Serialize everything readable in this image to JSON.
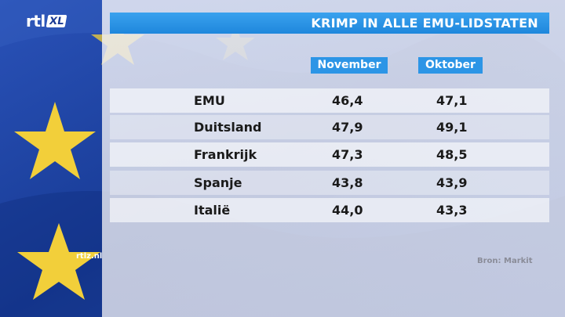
{
  "brand": {
    "logo_main": "rtl",
    "logo_sub": "XL"
  },
  "header": {
    "title": "KRIMP IN ALLE EMU-LIDSTATEN"
  },
  "chart_data": {
    "type": "table",
    "title": "KRIMP IN ALLE EMU-LIDSTATEN",
    "columns": [
      "November",
      "Oktober"
    ],
    "rows": [
      {
        "name": "EMU",
        "values": [
          "46,4",
          "47,1"
        ]
      },
      {
        "name": "Duitsland",
        "values": [
          "47,9",
          "49,1"
        ]
      },
      {
        "name": "Frankrijk",
        "values": [
          "47,3",
          "48,5"
        ]
      },
      {
        "name": "Spanje",
        "values": [
          "43,8",
          "43,9"
        ]
      },
      {
        "name": "Italië",
        "values": [
          "44,0",
          "43,3"
        ]
      }
    ],
    "source": "Bron: Markit"
  },
  "footer": {
    "site": "rtlz.nl",
    "source": "Bron: Markit"
  },
  "colors": {
    "flag_blue": "#1b3f9c",
    "star_yellow": "#f2cf3a",
    "header_blue": "#2c95e6"
  }
}
